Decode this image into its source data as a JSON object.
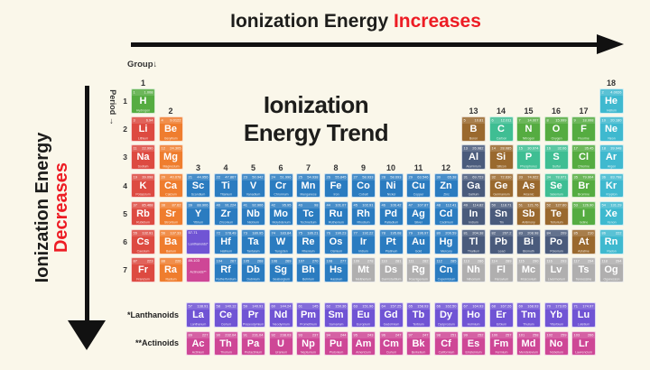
{
  "colors": {
    "background": "#FAF7EA",
    "text_dark": "#1D1D1B",
    "accent_red": "#ED1C24",
    "arrow_black": "#111111",
    "cell_text": "#FFFFFF",
    "categories": {
      "alkali": "#DD4A41",
      "alkaline": "#EF7D2E",
      "transition": "#2B7CC0",
      "post_transition": "#4A5B7C",
      "metalloid": "#9A692E",
      "diatomic_nonmetal": "#55AC41",
      "polyatomic_nonmetal": "#3FBE93",
      "noble_gas": "#3FB9CF",
      "lanthanoid": "#7054D4",
      "actinoid": "#CE4796",
      "unknown": "#B0AFAF"
    }
  },
  "top_arrow": {
    "text_black": "Ionization Energy ",
    "text_red": "Increases"
  },
  "left_arrow": {
    "text_black": "Ionization Energy",
    "text_red": "Decreases"
  },
  "title": {
    "line1": "Ionization",
    "line2": "Energy Trend"
  },
  "axis": {
    "group": "Group",
    "group_arrow": "↓",
    "period": "Period",
    "period_arrow": "→"
  },
  "row_labels": {
    "lanthanoids": "*Lanthanoids",
    "actinoids": "**Actinoids"
  },
  "table": {
    "periods": [
      1,
      2,
      3,
      4,
      5,
      6,
      7
    ],
    "group_labels": [
      {
        "n": 1,
        "col": 1,
        "row": 1
      },
      {
        "n": 2,
        "col": 2,
        "row": 2
      },
      {
        "n": 3,
        "col": 3,
        "row": 4
      },
      {
        "n": 4,
        "col": 4,
        "row": 4
      },
      {
        "n": 5,
        "col": 5,
        "row": 4
      },
      {
        "n": 6,
        "col": 6,
        "row": 4
      },
      {
        "n": 7,
        "col": 7,
        "row": 4
      },
      {
        "n": 8,
        "col": 8,
        "row": 4
      },
      {
        "n": 9,
        "col": 9,
        "row": 4
      },
      {
        "n": 10,
        "col": 10,
        "row": 4
      },
      {
        "n": 11,
        "col": 11,
        "row": 4
      },
      {
        "n": 12,
        "col": 12,
        "row": 4
      },
      {
        "n": 13,
        "col": 13,
        "row": 2
      },
      {
        "n": 14,
        "col": 14,
        "row": 2
      },
      {
        "n": 15,
        "col": 15,
        "row": 2
      },
      {
        "n": 16,
        "col": 16,
        "row": 2
      },
      {
        "n": 17,
        "col": 17,
        "row": 2
      },
      {
        "n": 18,
        "col": 18,
        "row": 1
      }
    ],
    "placeholders": [
      {
        "range": "57-71",
        "label": "Lanthanoids*",
        "cat": "lanthanoid",
        "row": 6,
        "col": 3
      },
      {
        "range": "89-103",
        "label": "Actinoids**",
        "cat": "actinoid",
        "row": 7,
        "col": 3
      }
    ],
    "elements_format": [
      "atomic_number",
      "symbol",
      "name",
      "mass",
      "category",
      "row",
      "col"
    ],
    "elements": [
      [
        1,
        "H",
        "Hydrogen",
        "1.008",
        "diatomic_nonmetal",
        1,
        1
      ],
      [
        2,
        "He",
        "Helium",
        "4.0026",
        "noble_gas",
        1,
        18
      ],
      [
        3,
        "Li",
        "Lithium",
        "6.94",
        "alkali",
        2,
        1
      ],
      [
        4,
        "Be",
        "Beryllium",
        "9.0122",
        "alkaline",
        2,
        2
      ],
      [
        5,
        "B",
        "Boron",
        "10.81",
        "metalloid",
        2,
        13
      ],
      [
        6,
        "C",
        "Carbon",
        "12.011",
        "polyatomic_nonmetal",
        2,
        14
      ],
      [
        7,
        "N",
        "Nitrogen",
        "14.007",
        "diatomic_nonmetal",
        2,
        15
      ],
      [
        8,
        "O",
        "Oxygen",
        "15.999",
        "diatomic_nonmetal",
        2,
        16
      ],
      [
        9,
        "F",
        "Fluorine",
        "18.998",
        "diatomic_nonmetal",
        2,
        17
      ],
      [
        10,
        "Ne",
        "Neon",
        "20.180",
        "noble_gas",
        2,
        18
      ],
      [
        11,
        "Na",
        "Sodium",
        "22.990",
        "alkali",
        3,
        1
      ],
      [
        12,
        "Mg",
        "Magnesium",
        "24.305",
        "alkaline",
        3,
        2
      ],
      [
        13,
        "Al",
        "Aluminium",
        "26.982",
        "post_transition",
        3,
        13
      ],
      [
        14,
        "Si",
        "Silicon",
        "28.085",
        "metalloid",
        3,
        14
      ],
      [
        15,
        "P",
        "Phosphorus",
        "30.974",
        "polyatomic_nonmetal",
        3,
        15
      ],
      [
        16,
        "S",
        "Sulfur",
        "32.06",
        "polyatomic_nonmetal",
        3,
        16
      ],
      [
        17,
        "Cl",
        "Chlorine",
        "35.45",
        "diatomic_nonmetal",
        3,
        17
      ],
      [
        18,
        "Ar",
        "Argon",
        "39.948",
        "noble_gas",
        3,
        18
      ],
      [
        19,
        "K",
        "Potassium",
        "39.098",
        "alkali",
        4,
        1
      ],
      [
        20,
        "Ca",
        "Calcium",
        "40.078",
        "alkaline",
        4,
        2
      ],
      [
        21,
        "Sc",
        "Scandium",
        "44.956",
        "transition",
        4,
        3
      ],
      [
        22,
        "Ti",
        "Titanium",
        "47.867",
        "transition",
        4,
        4
      ],
      [
        23,
        "V",
        "Vanadium",
        "50.942",
        "transition",
        4,
        5
      ],
      [
        24,
        "Cr",
        "Chromium",
        "51.996",
        "transition",
        4,
        6
      ],
      [
        25,
        "Mn",
        "Manganese",
        "54.938",
        "transition",
        4,
        7
      ],
      [
        26,
        "Fe",
        "Iron",
        "55.845",
        "transition",
        4,
        8
      ],
      [
        27,
        "Co",
        "Cobalt",
        "58.933",
        "transition",
        4,
        9
      ],
      [
        28,
        "Ni",
        "Nickel",
        "58.693",
        "transition",
        4,
        10
      ],
      [
        29,
        "Cu",
        "Copper",
        "63.546",
        "transition",
        4,
        11
      ],
      [
        30,
        "Zn",
        "Zinc",
        "65.38",
        "transition",
        4,
        12
      ],
      [
        31,
        "Ga",
        "Gallium",
        "69.723",
        "post_transition",
        4,
        13
      ],
      [
        32,
        "Ge",
        "Germanium",
        "72.630",
        "metalloid",
        4,
        14
      ],
      [
        33,
        "As",
        "Arsenic",
        "74.922",
        "metalloid",
        4,
        15
      ],
      [
        34,
        "Se",
        "Selenium",
        "78.971",
        "polyatomic_nonmetal",
        4,
        16
      ],
      [
        35,
        "Br",
        "Bromine",
        "79.904",
        "diatomic_nonmetal",
        4,
        17
      ],
      [
        36,
        "Kr",
        "Krypton",
        "83.798",
        "noble_gas",
        4,
        18
      ],
      [
        37,
        "Rb",
        "Rubidium",
        "85.468",
        "alkali",
        5,
        1
      ],
      [
        38,
        "Sr",
        "Strontium",
        "87.62",
        "alkaline",
        5,
        2
      ],
      [
        39,
        "Y",
        "Yttrium",
        "88.906",
        "transition",
        5,
        3
      ],
      [
        40,
        "Zr",
        "Zirconium",
        "91.224",
        "transition",
        5,
        4
      ],
      [
        41,
        "Nb",
        "Niobium",
        "92.906",
        "transition",
        5,
        5
      ],
      [
        42,
        "Mo",
        "Molybdenum",
        "95.95",
        "transition",
        5,
        6
      ],
      [
        43,
        "Tc",
        "Technetium",
        "98",
        "transition",
        5,
        7
      ],
      [
        44,
        "Ru",
        "Ruthenium",
        "101.07",
        "transition",
        5,
        8
      ],
      [
        45,
        "Rh",
        "Rhodium",
        "102.91",
        "transition",
        5,
        9
      ],
      [
        46,
        "Pd",
        "Palladium",
        "106.42",
        "transition",
        5,
        10
      ],
      [
        47,
        "Ag",
        "Silver",
        "107.87",
        "transition",
        5,
        11
      ],
      [
        48,
        "Cd",
        "Cadmium",
        "112.41",
        "transition",
        5,
        12
      ],
      [
        49,
        "In",
        "Indium",
        "114.82",
        "post_transition",
        5,
        13
      ],
      [
        50,
        "Sn",
        "Tin",
        "118.71",
        "post_transition",
        5,
        14
      ],
      [
        51,
        "Sb",
        "Antimony",
        "121.76",
        "metalloid",
        5,
        15
      ],
      [
        52,
        "Te",
        "Tellurium",
        "127.60",
        "metalloid",
        5,
        16
      ],
      [
        53,
        "I",
        "Iodine",
        "126.90",
        "diatomic_nonmetal",
        5,
        17
      ],
      [
        54,
        "Xe",
        "Xenon",
        "131.29",
        "noble_gas",
        5,
        18
      ],
      [
        55,
        "Cs",
        "Caesium",
        "132.91",
        "alkali",
        6,
        1
      ],
      [
        56,
        "Ba",
        "Barium",
        "137.33",
        "alkaline",
        6,
        2
      ],
      [
        72,
        "Hf",
        "Hafnium",
        "178.49",
        "transition",
        6,
        4
      ],
      [
        73,
        "Ta",
        "Tantalum",
        "180.95",
        "transition",
        6,
        5
      ],
      [
        74,
        "W",
        "Tungsten",
        "183.84",
        "transition",
        6,
        6
      ],
      [
        75,
        "Re",
        "Rhenium",
        "186.21",
        "transition",
        6,
        7
      ],
      [
        76,
        "Os",
        "Osmium",
        "190.23",
        "transition",
        6,
        8
      ],
      [
        77,
        "Ir",
        "Iridium",
        "192.22",
        "transition",
        6,
        9
      ],
      [
        78,
        "Pt",
        "Platinum",
        "195.08",
        "transition",
        6,
        10
      ],
      [
        79,
        "Au",
        "Gold",
        "196.97",
        "transition",
        6,
        11
      ],
      [
        80,
        "Hg",
        "Mercury",
        "200.59",
        "transition",
        6,
        12
      ],
      [
        81,
        "Tl",
        "Thallium",
        "204.38",
        "post_transition",
        6,
        13
      ],
      [
        82,
        "Pb",
        "Lead",
        "207.2",
        "post_transition",
        6,
        14
      ],
      [
        83,
        "Bi",
        "Bismuth",
        "208.98",
        "post_transition",
        6,
        15
      ],
      [
        84,
        "Po",
        "Polonium",
        "209",
        "post_transition",
        6,
        16
      ],
      [
        85,
        "At",
        "Astatine",
        "210",
        "metalloid",
        6,
        17
      ],
      [
        86,
        "Rn",
        "Radon",
        "222",
        "noble_gas",
        6,
        18
      ],
      [
        87,
        "Fr",
        "Francium",
        "223",
        "alkali",
        7,
        1
      ],
      [
        88,
        "Ra",
        "Radium",
        "226",
        "alkaline",
        7,
        2
      ],
      [
        104,
        "Rf",
        "Rutherfordium",
        "267",
        "transition",
        7,
        4
      ],
      [
        105,
        "Db",
        "Dubnium",
        "268",
        "transition",
        7,
        5
      ],
      [
        106,
        "Sg",
        "Seaborgium",
        "269",
        "transition",
        7,
        6
      ],
      [
        107,
        "Bh",
        "Bohrium",
        "270",
        "transition",
        7,
        7
      ],
      [
        108,
        "Hs",
        "Hassium",
        "277",
        "transition",
        7,
        8
      ],
      [
        109,
        "Mt",
        "Meitnerium",
        "278",
        "unknown",
        7,
        9
      ],
      [
        110,
        "Ds",
        "Darmstadtium",
        "281",
        "unknown",
        7,
        10
      ],
      [
        111,
        "Rg",
        "Roentgenium",
        "282",
        "unknown",
        7,
        11
      ],
      [
        112,
        "Cn",
        "Copernicium",
        "285",
        "transition",
        7,
        12
      ],
      [
        113,
        "Nh",
        "Nihonium",
        "286",
        "unknown",
        7,
        13
      ],
      [
        114,
        "Fl",
        "Flerovium",
        "289",
        "unknown",
        7,
        14
      ],
      [
        115,
        "Mc",
        "Moscovium",
        "290",
        "unknown",
        7,
        15
      ],
      [
        116,
        "Lv",
        "Livermorium",
        "293",
        "unknown",
        7,
        16
      ],
      [
        117,
        "Ts",
        "Tennessine",
        "294",
        "unknown",
        7,
        17
      ],
      [
        118,
        "Og",
        "Oganesson",
        "294",
        "unknown",
        7,
        18
      ],
      [
        57,
        "La",
        "Lanthanum",
        "138.91",
        "lanthanoid",
        "L",
        3
      ],
      [
        58,
        "Ce",
        "Cerium",
        "140.12",
        "lanthanoid",
        "L",
        4
      ],
      [
        59,
        "Pr",
        "Praseodymium",
        "140.91",
        "lanthanoid",
        "L",
        5
      ],
      [
        60,
        "Nd",
        "Neodymium",
        "144.24",
        "lanthanoid",
        "L",
        6
      ],
      [
        61,
        "Pm",
        "Promethium",
        "145",
        "lanthanoid",
        "L",
        7
      ],
      [
        62,
        "Sm",
        "Samarium",
        "150.36",
        "lanthanoid",
        "L",
        8
      ],
      [
        63,
        "Eu",
        "Europium",
        "151.96",
        "lanthanoid",
        "L",
        9
      ],
      [
        64,
        "Gd",
        "Gadolinium",
        "157.25",
        "lanthanoid",
        "L",
        10
      ],
      [
        65,
        "Tb",
        "Terbium",
        "158.93",
        "lanthanoid",
        "L",
        11
      ],
      [
        66,
        "Dy",
        "Dysprosium",
        "162.50",
        "lanthanoid",
        "L",
        12
      ],
      [
        67,
        "Ho",
        "Holmium",
        "164.93",
        "lanthanoid",
        "L",
        13
      ],
      [
        68,
        "Er",
        "Erbium",
        "167.26",
        "lanthanoid",
        "L",
        14
      ],
      [
        69,
        "Tm",
        "Thulium",
        "168.93",
        "lanthanoid",
        "L",
        15
      ],
      [
        70,
        "Yb",
        "Ytterbium",
        "173.05",
        "lanthanoid",
        "L",
        16
      ],
      [
        71,
        "Lu",
        "Lutetium",
        "174.97",
        "lanthanoid",
        "L",
        17
      ],
      [
        89,
        "Ac",
        "Actinium",
        "227",
        "actinoid",
        "A",
        3
      ],
      [
        90,
        "Th",
        "Thorium",
        "232.04",
        "actinoid",
        "A",
        4
      ],
      [
        91,
        "Pa",
        "Protactinium",
        "231.04",
        "actinoid",
        "A",
        5
      ],
      [
        92,
        "U",
        "Uranium",
        "238.03",
        "actinoid",
        "A",
        6
      ],
      [
        93,
        "Np",
        "Neptunium",
        "237",
        "actinoid",
        "A",
        7
      ],
      [
        94,
        "Pu",
        "Plutonium",
        "244",
        "actinoid",
        "A",
        8
      ],
      [
        95,
        "Am",
        "Americium",
        "243",
        "actinoid",
        "A",
        9
      ],
      [
        96,
        "Cm",
        "Curium",
        "247",
        "actinoid",
        "A",
        10
      ],
      [
        97,
        "Bk",
        "Berkelium",
        "247",
        "actinoid",
        "A",
        11
      ],
      [
        98,
        "Cf",
        "Californium",
        "251",
        "actinoid",
        "A",
        12
      ],
      [
        99,
        "Es",
        "Einsteinium",
        "252",
        "actinoid",
        "A",
        13
      ],
      [
        100,
        "Fm",
        "Fermium",
        "257",
        "actinoid",
        "A",
        14
      ],
      [
        101,
        "Md",
        "Mendelevium",
        "258",
        "actinoid",
        "A",
        15
      ],
      [
        102,
        "No",
        "Nobelium",
        "259",
        "actinoid",
        "A",
        16
      ],
      [
        103,
        "Lr",
        "Lawrencium",
        "266",
        "actinoid",
        "A",
        17
      ]
    ]
  }
}
